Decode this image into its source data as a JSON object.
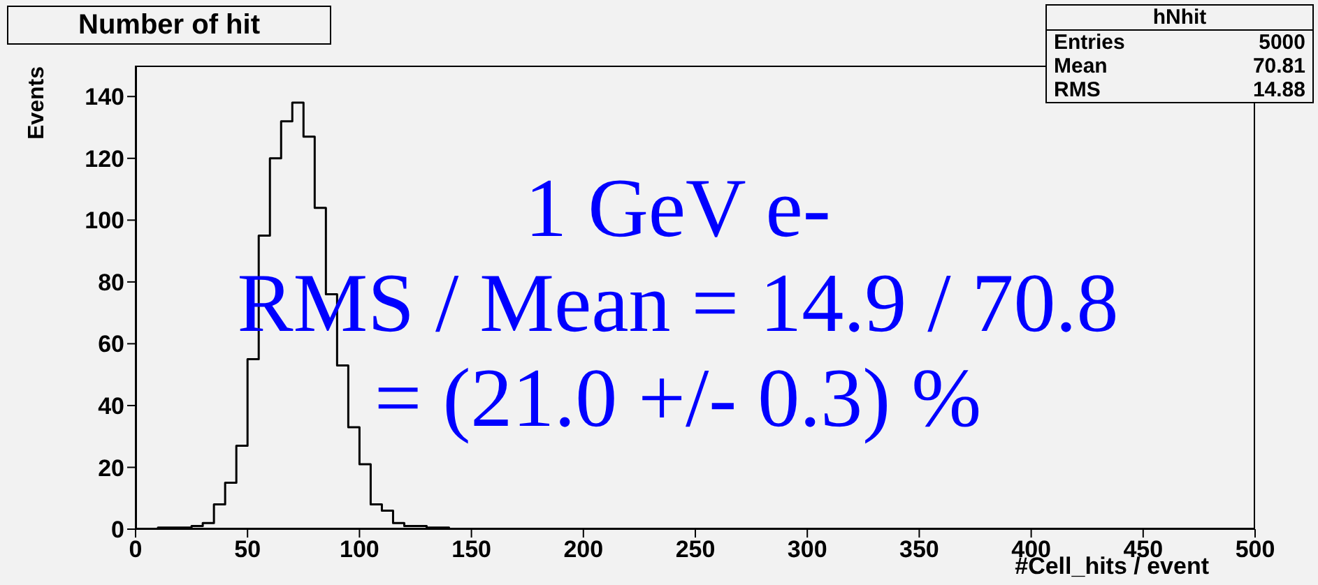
{
  "chart_data": {
    "type": "histogram",
    "title": "Number of hit",
    "xlabel": "#Cell_hits / event",
    "ylabel": "Events",
    "color": "#000000",
    "bins": [
      0,
      5,
      10,
      15,
      20,
      25,
      30,
      35,
      40,
      45,
      50,
      55,
      60,
      65,
      70,
      75,
      80,
      85,
      90,
      95,
      100,
      105,
      110,
      115,
      120,
      125,
      130,
      135,
      140,
      500
    ],
    "values": [
      0,
      0,
      0.5,
      0.5,
      0.5,
      1,
      2,
      8,
      15,
      27,
      55,
      95,
      120,
      132,
      138,
      127,
      104,
      76,
      53,
      33,
      21,
      8,
      6,
      2,
      1,
      1,
      0.5,
      0.5,
      0
    ],
    "xlim": [
      0,
      500
    ],
    "xticks": [
      0,
      50,
      100,
      150,
      200,
      250,
      300,
      350,
      400,
      450,
      500
    ],
    "ylim": [
      0,
      150
    ],
    "yticks": [
      0,
      20,
      40,
      60,
      80,
      100,
      120,
      140
    ],
    "grid": false,
    "legend": false,
    "annotations": [
      "1 GeV e-",
      "RMS / Mean = 14.9 / 70.8",
      "= (21.0 +/- 0.3) %",
      "hNhit",
      "Entries 5000",
      "Mean 70.81",
      "RMS 14.88"
    ]
  }
}
